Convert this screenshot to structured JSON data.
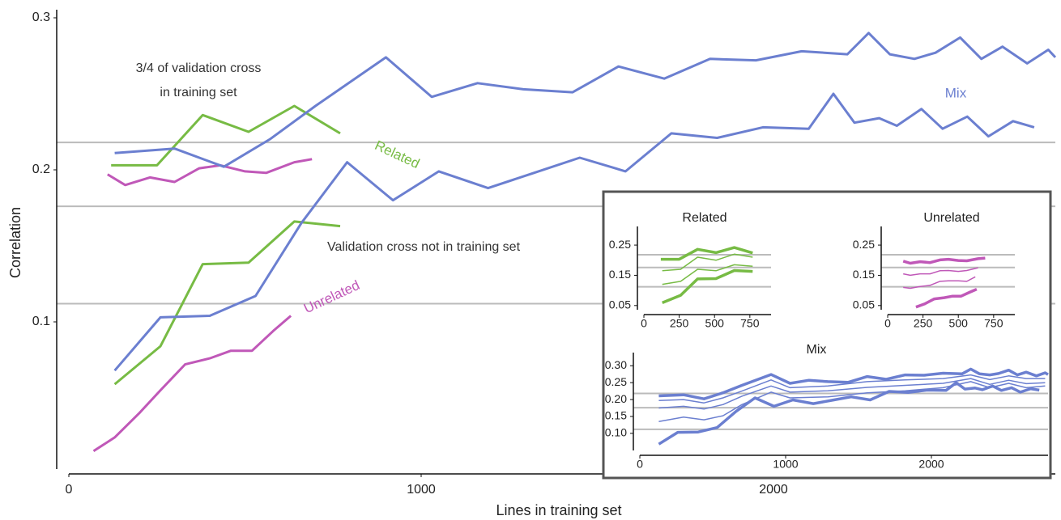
{
  "chart_data": [
    {
      "type": "line",
      "xlabel": "Lines in training set",
      "ylabel": "Correlation",
      "xlim": [
        0,
        2800
      ],
      "ylim": [
        0,
        0.3
      ],
      "xticks": [
        0,
        1000,
        2000
      ],
      "yticks": [
        0.1,
        0.2,
        0.3
      ],
      "reference_lines": [
        0.218,
        0.176,
        0.112
      ],
      "annotations": [
        {
          "text": [
            "3/4 of validation cross",
            "in training set"
          ]
        },
        {
          "text": [
            "Validation cross not in training set"
          ]
        }
      ],
      "series": [
        {
          "name": "Related",
          "color": "#77bb44",
          "lines": [
            {
              "x": [
                120,
                250,
                380,
                510,
                640,
                770
              ],
              "values": [
                0.203,
                0.203,
                0.236,
                0.225,
                0.242,
                0.224
              ]
            },
            {
              "x": [
                130,
                260,
                380,
                510,
                640,
                770
              ],
              "values": [
                0.059,
                0.084,
                0.138,
                0.139,
                0.166,
                0.163
              ]
            }
          ]
        },
        {
          "name": "Unrelated",
          "color": "#c058b8",
          "lines": [
            {
              "x": [
                110,
                160,
                230,
                300,
                370,
                430,
                500,
                560,
                640,
                690
              ],
              "values": [
                0.197,
                0.19,
                0.195,
                0.192,
                0.201,
                0.203,
                0.199,
                0.198,
                0.205,
                0.207
              ]
            },
            {
              "x": [
                70,
                130,
                200,
                260,
                330,
                400,
                460,
                520,
                580,
                630
              ],
              "values": [
                0.015,
                0.024,
                0.04,
                0.055,
                0.072,
                0.076,
                0.081,
                0.081,
                0.094,
                0.104
              ]
            }
          ]
        },
        {
          "name": "Mix",
          "color": "#6b7fd0",
          "lines": [
            {
              "x": [
                130,
                300,
                440,
                570,
                700,
                900,
                1030,
                1160,
                1290,
                1430,
                1560,
                1690,
                1820,
                1950,
                2080,
                2210,
                2270,
                2330,
                2400,
                2460,
                2530,
                2590,
                2650,
                2720,
                2780,
                2800
              ],
              "values": [
                0.211,
                0.214,
                0.202,
                0.22,
                0.242,
                0.274,
                0.248,
                0.257,
                0.253,
                0.251,
                0.268,
                0.26,
                0.273,
                0.272,
                0.278,
                0.276,
                0.29,
                0.276,
                0.273,
                0.277,
                0.287,
                0.273,
                0.281,
                0.27,
                0.279,
                0.274
              ]
            },
            {
              "x": [
                130,
                260,
                400,
                530,
                660,
                790,
                920,
                1050,
                1190,
                1320,
                1450,
                1580,
                1710,
                1840,
                1970,
                2100,
                2170,
                2230,
                2300,
                2350,
                2420,
                2480,
                2550,
                2610,
                2680,
                2740
              ],
              "values": [
                0.068,
                0.103,
                0.104,
                0.117,
                0.165,
                0.205,
                0.18,
                0.199,
                0.188,
                0.198,
                0.208,
                0.199,
                0.224,
                0.221,
                0.228,
                0.227,
                0.25,
                0.231,
                0.234,
                0.229,
                0.24,
                0.227,
                0.235,
                0.222,
                0.232,
                0.228
              ]
            }
          ]
        }
      ]
    },
    {
      "type": "line",
      "title": "Related",
      "xlim": [
        0,
        900
      ],
      "ylim": [
        0.02,
        0.285
      ],
      "xticks": [
        0,
        250,
        500,
        750
      ],
      "yticks": [
        0.05,
        0.15,
        0.25
      ],
      "reference_lines": [
        0.218,
        0.176,
        0.112
      ],
      "series": [
        {
          "color": "#77bb44",
          "lines": [
            {
              "x": [
                120,
                250,
                380,
                510,
                640,
                770
              ],
              "values": [
                0.203,
                0.203,
                0.236,
                0.225,
                0.242,
                0.224
              ]
            },
            {
              "x": [
                130,
                260,
                380,
                510,
                640,
                770
              ],
              "values": [
                0.165,
                0.17,
                0.21,
                0.2,
                0.22,
                0.21
              ]
            },
            {
              "x": [
                130,
                260,
                380,
                510,
                640,
                770
              ],
              "values": [
                0.12,
                0.13,
                0.17,
                0.165,
                0.185,
                0.18
              ]
            },
            {
              "x": [
                130,
                260,
                380,
                510,
                640,
                770
              ],
              "values": [
                0.059,
                0.084,
                0.138,
                0.139,
                0.166,
                0.163
              ]
            }
          ]
        }
      ]
    },
    {
      "type": "line",
      "title": "Unrelated",
      "xlim": [
        0,
        900
      ],
      "ylim": [
        0.02,
        0.285
      ],
      "xticks": [
        0,
        250,
        500,
        750
      ],
      "yticks": [
        0.05,
        0.15,
        0.25
      ],
      "reference_lines": [
        0.218,
        0.176,
        0.112
      ],
      "series": [
        {
          "color": "#c058b8",
          "lines": [
            {
              "x": [
                110,
                160,
                230,
                300,
                370,
                430,
                500,
                560,
                640,
                690
              ],
              "values": [
                0.197,
                0.19,
                0.195,
                0.192,
                0.201,
                0.203,
                0.199,
                0.198,
                0.205,
                0.207
              ]
            },
            {
              "x": [
                110,
                160,
                230,
                300,
                370,
                430,
                500,
                560,
                640
              ],
              "values": [
                0.155,
                0.15,
                0.155,
                0.155,
                0.165,
                0.166,
                0.163,
                0.166,
                0.175
              ]
            },
            {
              "x": [
                110,
                160,
                230,
                300,
                370,
                430,
                500,
                560,
                620
              ],
              "values": [
                0.11,
                0.107,
                0.113,
                0.117,
                0.13,
                0.132,
                0.132,
                0.13,
                0.145
              ]
            },
            {
              "x": [
                200,
                260,
                330,
                400,
                460,
                520,
                580,
                630
              ],
              "values": [
                0.045,
                0.055,
                0.072,
                0.076,
                0.081,
                0.081,
                0.094,
                0.104
              ]
            }
          ]
        }
      ]
    },
    {
      "type": "line",
      "title": "Mix",
      "xlim": [
        0,
        2800
      ],
      "ylim": [
        0.035,
        0.315
      ],
      "xticks": [
        0,
        1000,
        2000
      ],
      "yticks": [
        {
          "value": 0.1,
          "label": "0.10"
        },
        0.15,
        {
          "value": 0.2,
          "label": "0.20"
        },
        0.25,
        {
          "value": 0.3,
          "label": "0.30"
        }
      ],
      "reference_lines": [
        0.218,
        0.176,
        0.112
      ],
      "series": [
        {
          "color": "#6b7fd0",
          "lines": [
            {
              "x": [
                130,
                300,
                440,
                570,
                700,
                900,
                1030,
                1160,
                1290,
                1430,
                1560,
                1690,
                1820,
                1950,
                2080,
                2210,
                2270,
                2330,
                2400,
                2460,
                2530,
                2590,
                2650,
                2720,
                2780,
                2800
              ],
              "values": [
                0.211,
                0.214,
                0.202,
                0.22,
                0.242,
                0.274,
                0.248,
                0.257,
                0.253,
                0.251,
                0.268,
                0.26,
                0.273,
                0.272,
                0.278,
                0.276,
                0.29,
                0.276,
                0.273,
                0.277,
                0.287,
                0.273,
                0.281,
                0.27,
                0.279,
                0.274
              ]
            },
            {
              "x": [
                130,
                300,
                440,
                570,
                700,
                900,
                1030,
                1290,
                1560,
                1820,
                2080,
                2270,
                2400,
                2530,
                2650,
                2780
              ],
              "values": [
                0.197,
                0.2,
                0.19,
                0.205,
                0.225,
                0.258,
                0.235,
                0.24,
                0.253,
                0.258,
                0.262,
                0.273,
                0.259,
                0.27,
                0.262,
                0.262
              ]
            },
            {
              "x": [
                130,
                300,
                440,
                570,
                700,
                900,
                1030,
                1290,
                1560,
                1820,
                2080,
                2270,
                2400,
                2530,
                2650,
                2780
              ],
              "values": [
                0.175,
                0.18,
                0.172,
                0.185,
                0.21,
                0.24,
                0.222,
                0.226,
                0.236,
                0.242,
                0.248,
                0.262,
                0.245,
                0.257,
                0.247,
                0.25
              ]
            },
            {
              "x": [
                130,
                300,
                440,
                570,
                700,
                900,
                1030,
                1290,
                1560,
                1820,
                2080,
                2270,
                2400,
                2530,
                2650,
                2780
              ],
              "values": [
                0.135,
                0.148,
                0.14,
                0.152,
                0.185,
                0.222,
                0.205,
                0.208,
                0.22,
                0.226,
                0.235,
                0.253,
                0.235,
                0.248,
                0.235,
                0.24
              ]
            },
            {
              "x": [
                130,
                260,
                400,
                530,
                660,
                790,
                920,
                1050,
                1190,
                1320,
                1450,
                1580,
                1710,
                1840,
                1970,
                2100,
                2170,
                2230,
                2300,
                2350,
                2420,
                2480,
                2550,
                2610,
                2680,
                2740
              ],
              "values": [
                0.068,
                0.103,
                0.104,
                0.117,
                0.165,
                0.205,
                0.18,
                0.199,
                0.188,
                0.198,
                0.208,
                0.199,
                0.224,
                0.221,
                0.228,
                0.227,
                0.25,
                0.231,
                0.234,
                0.229,
                0.24,
                0.227,
                0.235,
                0.222,
                0.232,
                0.228
              ]
            }
          ]
        }
      ]
    }
  ]
}
